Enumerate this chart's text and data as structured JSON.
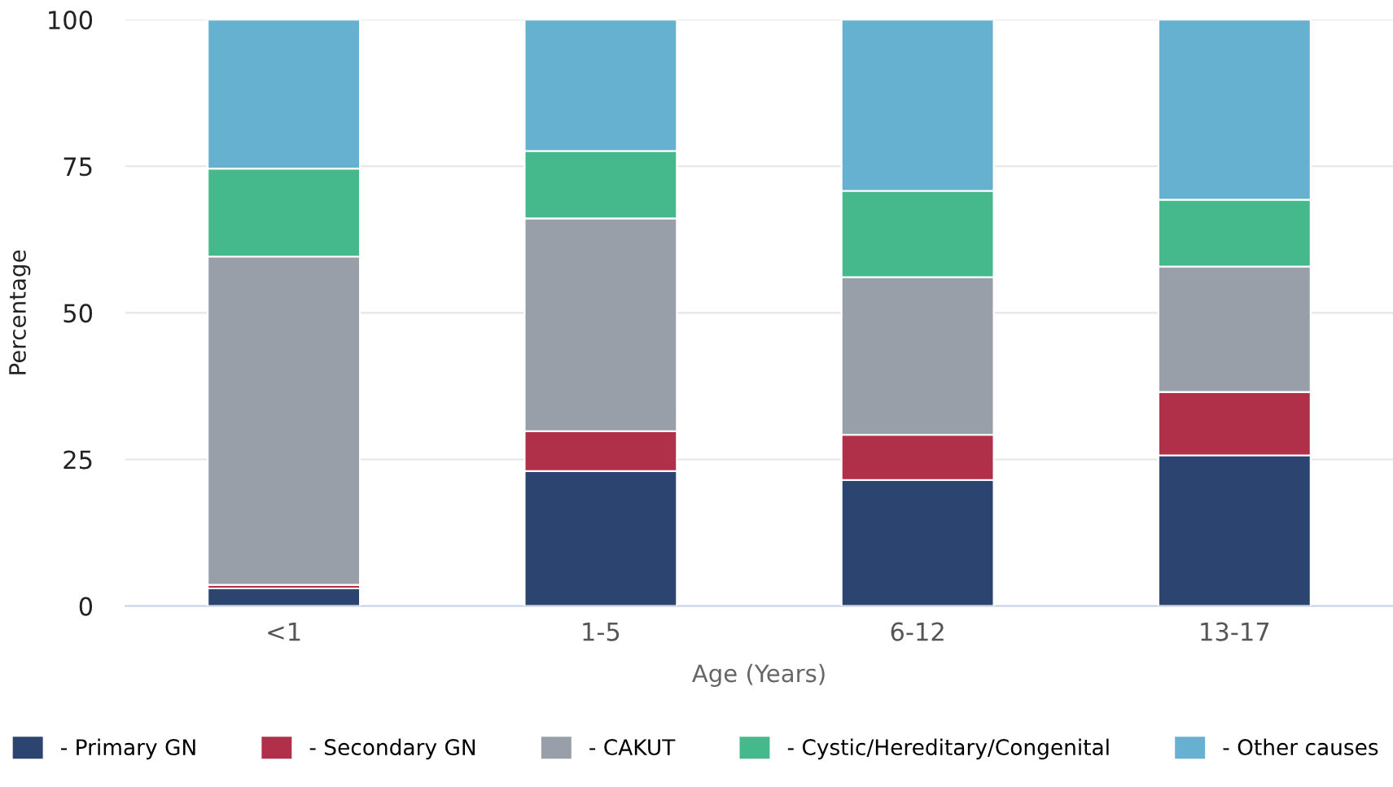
{
  "chart_data": {
    "type": "bar",
    "stacked": true,
    "xlabel": "Age (Years)",
    "ylabel": "Percentage",
    "categories": [
      "<1",
      "1-5",
      "6-12",
      "13-17"
    ],
    "series": [
      {
        "name": "- Primary GN",
        "color": "#2b4470",
        "values": [
          3.0,
          23.0,
          21.5,
          25.7
        ]
      },
      {
        "name": "- Secondary GN",
        "color": "#b0304a",
        "values": [
          0.6,
          6.8,
          7.7,
          10.8
        ]
      },
      {
        "name": "- CAKUT",
        "color": "#989fa8",
        "values": [
          56.0,
          36.3,
          26.9,
          21.4
        ]
      },
      {
        "name": "- Cystic/Hereditary/Congenital",
        "color": "#45b98c",
        "values": [
          15.0,
          11.5,
          14.7,
          11.4
        ]
      },
      {
        "name": "- Other causes",
        "color": "#66b0d0",
        "values": [
          25.4,
          22.4,
          29.2,
          30.7
        ]
      }
    ],
    "ylim": [
      0,
      100
    ],
    "yticks": [
      0,
      25,
      50,
      75,
      100
    ],
    "grid": "y",
    "legend": "bottom"
  }
}
